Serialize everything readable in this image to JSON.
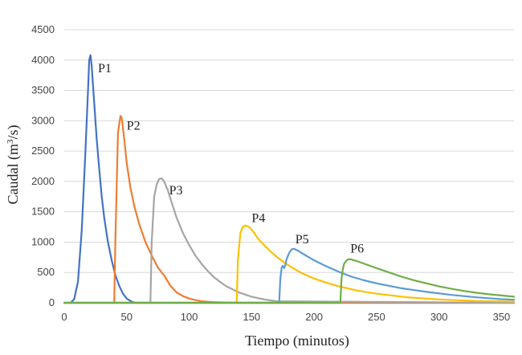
{
  "chart_data": {
    "type": "line",
    "title": "",
    "xlabel": "Tiempo (minutos)",
    "ylabel_parts": {
      "pre": "Caudal  (m",
      "sup": "3",
      "post": "/s)"
    },
    "xlim": [
      0,
      360
    ],
    "ylim": [
      0,
      4500
    ],
    "xticks": [
      0,
      50,
      100,
      150,
      200,
      250,
      300,
      350
    ],
    "yticks": [
      0,
      500,
      1000,
      1500,
      2000,
      2500,
      3000,
      3500,
      4000,
      4500
    ],
    "grid": "horizontal",
    "legend": "none",
    "series": [
      {
        "name": "P1",
        "color": "#4472C4",
        "x": [
          0,
          5,
          8,
          11,
          14,
          17,
          19,
          20,
          21,
          22,
          24,
          26,
          28,
          30,
          32,
          35,
          38,
          41,
          44,
          47,
          50,
          53,
          55,
          57,
          360
        ],
        "y": [
          0,
          0,
          60,
          350,
          1200,
          2500,
          3500,
          4000,
          4080,
          3900,
          3300,
          2700,
          2200,
          1750,
          1400,
          1000,
          700,
          450,
          280,
          150,
          70,
          30,
          10,
          0,
          0
        ]
      },
      {
        "name": "P2",
        "color": "#ED7D31",
        "x": [
          0,
          40,
          41,
          43,
          45,
          46,
          48,
          50,
          53,
          56,
          60,
          65,
          70,
          75,
          80,
          85,
          90,
          95,
          100,
          105,
          110,
          120,
          130,
          140,
          360
        ],
        "y": [
          0,
          0,
          1100,
          2800,
          3080,
          3040,
          2700,
          2300,
          1900,
          1600,
          1300,
          1000,
          780,
          580,
          450,
          280,
          170,
          110,
          70,
          45,
          25,
          10,
          5,
          0,
          0
        ]
      },
      {
        "name": "P3",
        "color": "#A5A5A5",
        "x": [
          0,
          69,
          70,
          72,
          74,
          76,
          78,
          80,
          83,
          86,
          90,
          95,
          100,
          105,
          110,
          115,
          120,
          125,
          130,
          140,
          150,
          160,
          170,
          360
        ],
        "y": [
          0,
          0,
          1000,
          1750,
          1950,
          2040,
          2050,
          2000,
          1850,
          1650,
          1400,
          1150,
          950,
          780,
          640,
          520,
          420,
          340,
          270,
          170,
          100,
          55,
          25,
          0
        ]
      },
      {
        "name": "P4",
        "color": "#FFC000",
        "x": [
          0,
          138,
          139,
          141,
          143,
          145,
          147,
          149,
          151,
          153,
          155,
          160,
          165,
          170,
          175,
          180,
          190,
          200,
          210,
          220,
          235,
          250,
          275,
          300,
          330,
          360
        ],
        "y": [
          0,
          0,
          700,
          1150,
          1250,
          1270,
          1260,
          1230,
          1180,
          1120,
          1060,
          950,
          850,
          760,
          680,
          610,
          490,
          400,
          330,
          270,
          200,
          150,
          90,
          55,
          30,
          20
        ]
      },
      {
        "name": "P5",
        "color": "#5B9BD5",
        "x": [
          0,
          172,
          173,
          174,
          175,
          176,
          177,
          178,
          180,
          182,
          184,
          186,
          188,
          190,
          195,
          200,
          210,
          220,
          230,
          240,
          250,
          270,
          290,
          310,
          330,
          350,
          360
        ],
        "y": [
          0,
          0,
          400,
          580,
          610,
          570,
          620,
          720,
          820,
          880,
          890,
          870,
          850,
          820,
          760,
          700,
          600,
          510,
          430,
          370,
          320,
          240,
          180,
          130,
          90,
          60,
          50
        ]
      },
      {
        "name": "P6",
        "color": "#70AD47",
        "x": [
          0,
          221,
          222,
          223,
          224,
          226,
          228,
          230,
          232,
          234,
          238,
          242,
          250,
          260,
          270,
          280,
          290,
          300,
          310,
          320,
          330,
          340,
          350,
          360
        ],
        "y": [
          0,
          0,
          400,
          550,
          640,
          700,
          720,
          715,
          700,
          690,
          660,
          630,
          570,
          500,
          430,
          370,
          320,
          270,
          230,
          195,
          165,
          140,
          120,
          100
        ]
      }
    ],
    "annotations": [
      {
        "label": "P1",
        "x": 27,
        "y": 3800
      },
      {
        "label": "P2",
        "x": 50,
        "y": 2850
      },
      {
        "label": "P3",
        "x": 84,
        "y": 1790
      },
      {
        "label": "P4",
        "x": 150,
        "y": 1330
      },
      {
        "label": "P5",
        "x": 185,
        "y": 980
      },
      {
        "label": "P6",
        "x": 229,
        "y": 830
      }
    ]
  }
}
